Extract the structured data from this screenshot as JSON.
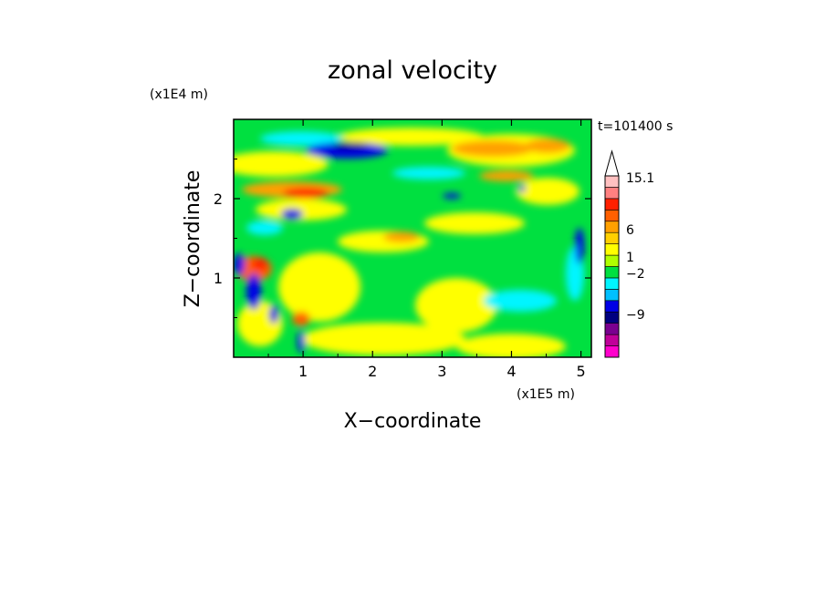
{
  "chart_data": {
    "type": "heatmap",
    "title": "zonal velocity",
    "xlabel": "X−coordinate",
    "ylabel": "Z−coordinate",
    "x_scale_label": "(x1E5 m)",
    "y_scale_label": "(x1E4 m)",
    "time_label": "t=101400 s",
    "xlim": [
      0,
      5.15
    ],
    "ylim": [
      0,
      3.0
    ],
    "x_ticks": [
      "1",
      "2",
      "3",
      "4",
      "5"
    ],
    "y_ticks": [
      "1",
      "2"
    ],
    "colorbar": {
      "levels": [
        "15.1",
        "6",
        "1",
        "−2",
        "−9"
      ],
      "colors": [
        "#ff00cc",
        "#c0009a",
        "#7a0090",
        "#000080",
        "#0000e6",
        "#00c0ff",
        "#00f5ff",
        "#00e040",
        "#b0ff00",
        "#ffff00",
        "#ffd000",
        "#ffa000",
        "#ff6000",
        "#ff2000",
        "#ff8080",
        "#ffc0c0"
      ]
    }
  }
}
